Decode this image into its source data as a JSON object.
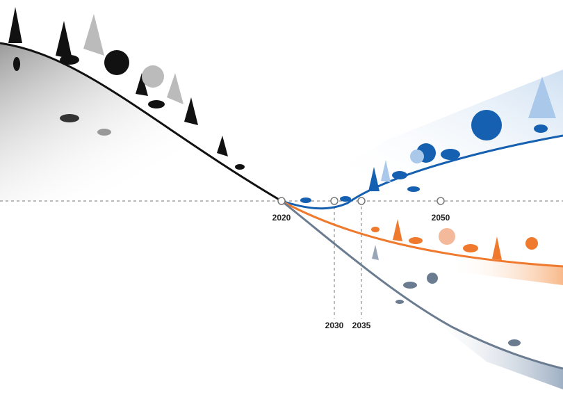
{
  "year_labels": [
    "2020",
    "2030",
    "2035",
    "2050"
  ]
}
